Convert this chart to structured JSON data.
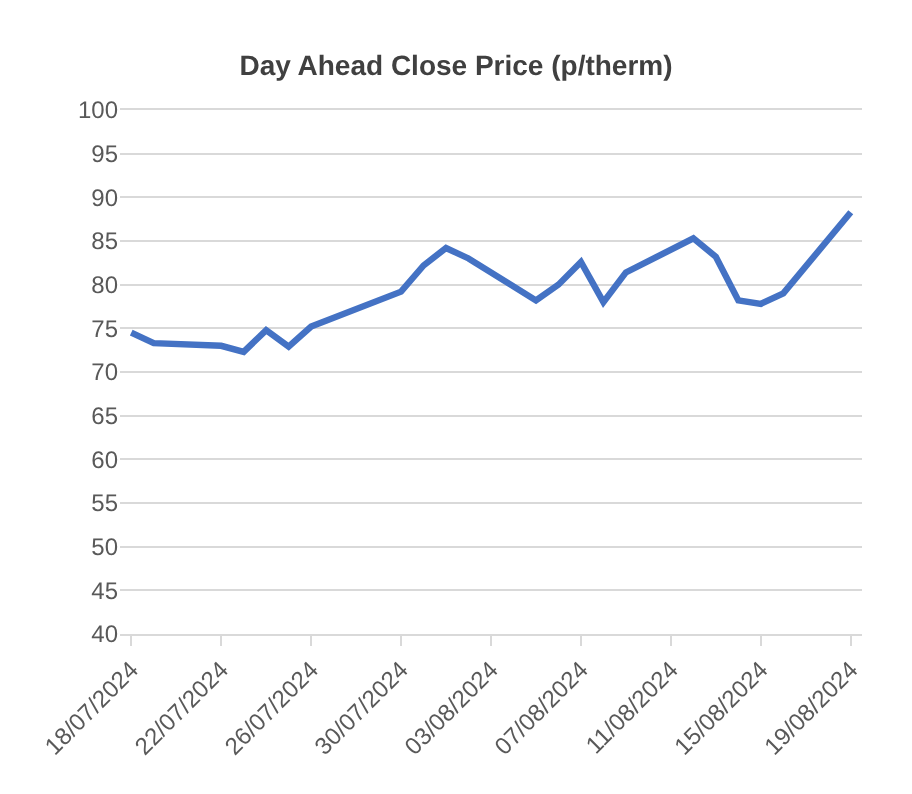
{
  "chart_data": {
    "type": "line",
    "title": "Day Ahead Close Price (p/therm)",
    "x": [
      "2024-07-18",
      "2024-07-19",
      "2024-07-22",
      "2024-07-23",
      "2024-07-24",
      "2024-07-25",
      "2024-07-26",
      "2024-07-30",
      "2024-07-31",
      "2024-08-01",
      "2024-08-02",
      "2024-08-05",
      "2024-08-06",
      "2024-08-07",
      "2024-08-08",
      "2024-08-09",
      "2024-08-12",
      "2024-08-13",
      "2024-08-14",
      "2024-08-15",
      "2024-08-16",
      "2024-08-19"
    ],
    "series": [
      {
        "color": "#4472c4",
        "values": [
          74.5,
          73.3,
          73.0,
          72.3,
          74.8,
          72.9,
          75.2,
          79.2,
          82.2,
          84.2,
          83.0,
          78.2,
          80.0,
          82.6,
          78.0,
          81.4,
          85.3,
          83.2,
          78.2,
          77.8,
          79.0,
          88.3
        ]
      }
    ],
    "xlim": [
      "2024-07-17T12:00",
      "2024-08-19T12:00"
    ],
    "xticks": [
      {
        "value": "2024-07-18",
        "label": "18/07/2024"
      },
      {
        "value": "2024-07-22",
        "label": "22/07/2024"
      },
      {
        "value": "2024-07-26",
        "label": "26/07/2024"
      },
      {
        "value": "2024-07-30",
        "label": "30/07/2024"
      },
      {
        "value": "2024-08-03",
        "label": "03/08/2024"
      },
      {
        "value": "2024-08-07",
        "label": "07/08/2024"
      },
      {
        "value": "2024-08-11",
        "label": "11/08/2024"
      },
      {
        "value": "2024-08-15",
        "label": "15/08/2024"
      },
      {
        "value": "2024-08-19",
        "label": "19/08/2024"
      }
    ],
    "ylim": [
      40,
      100
    ],
    "yticks": [
      40,
      45,
      50,
      55,
      60,
      65,
      70,
      75,
      80,
      85,
      90,
      95,
      100
    ],
    "grid": "y",
    "marker": "none",
    "line_style": "solid"
  }
}
